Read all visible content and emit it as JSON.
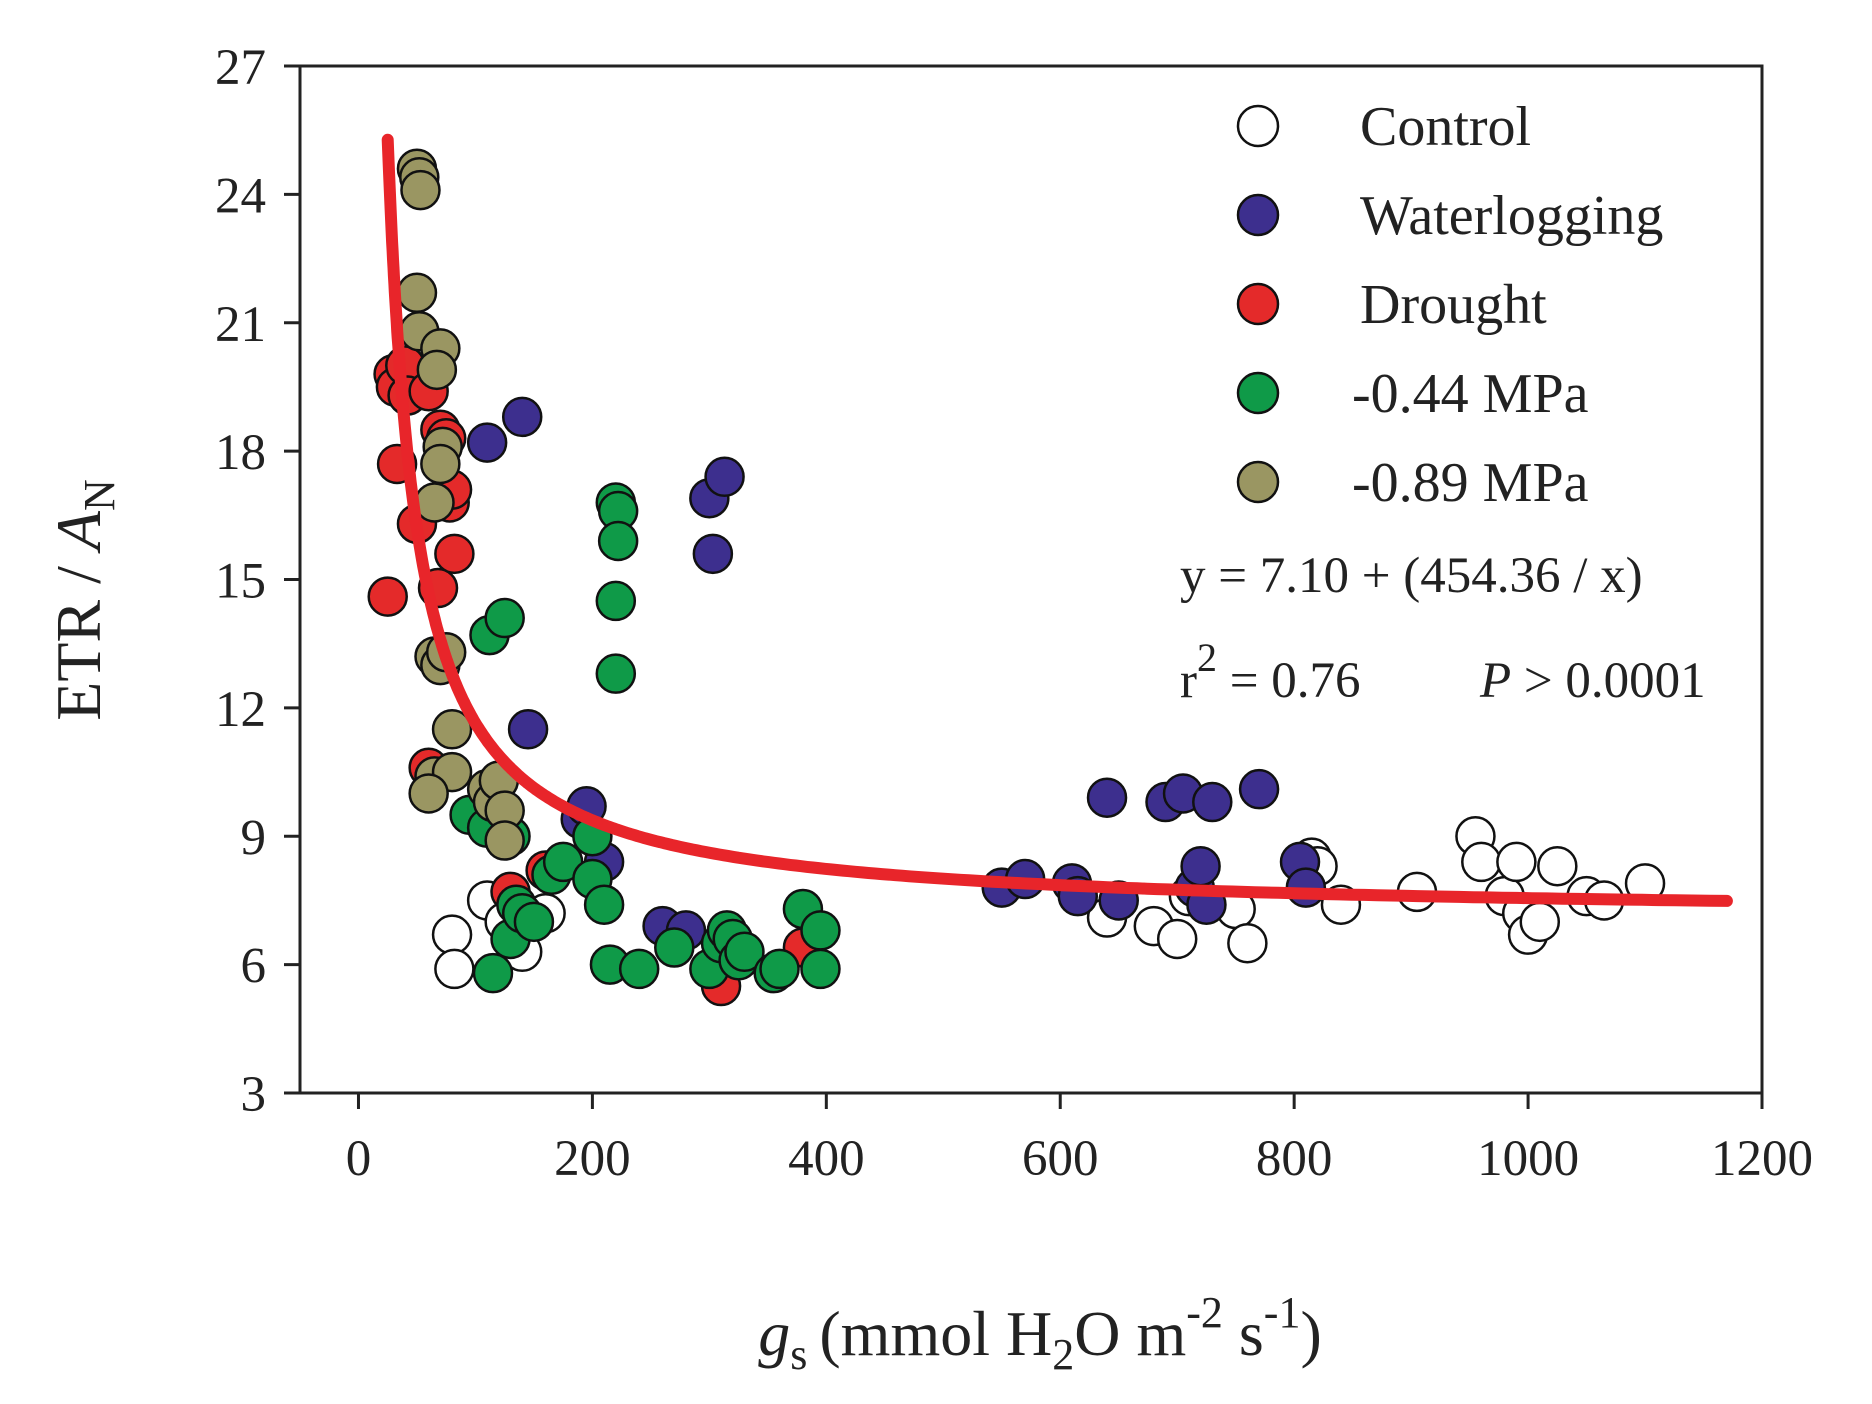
{
  "chart_data": {
    "type": "scatter",
    "title": "",
    "xlabel": {
      "symbol": "g",
      "subscript": "s",
      "unit": "(mmol H",
      "unit_sub": "2",
      "unit_mid": "O m",
      "sup1": "-2",
      "unit_end": " s",
      "sup2": "-1",
      "close": ")"
    },
    "ylabel": {
      "prefix": "ETR / ",
      "symbol": "A",
      "subscript": "N"
    },
    "xlim": [
      -50,
      1200
    ],
    "ylim": [
      3,
      27
    ],
    "xticks": [
      0,
      200,
      400,
      600,
      800,
      1000,
      1200
    ],
    "yticks": [
      3,
      6,
      9,
      12,
      15,
      18,
      21,
      24,
      27
    ],
    "xtick_labels": [
      "0",
      "200",
      "400",
      "600",
      "800",
      "1000",
      "1200"
    ],
    "ytick_labels": [
      "3",
      "6",
      "9",
      "12",
      "15",
      "18",
      "21",
      "24",
      "27"
    ],
    "legend_position": "top-right",
    "series": [
      {
        "name": "Control",
        "color": "#ffffff",
        "points": [
          [
            80,
            6.7
          ],
          [
            82,
            5.9
          ],
          [
            110,
            7.5
          ],
          [
            140,
            6.3
          ],
          [
            125,
            7.0
          ],
          [
            160,
            7.2
          ],
          [
            640,
            7.1
          ],
          [
            680,
            6.9
          ],
          [
            700,
            6.6
          ],
          [
            710,
            7.6
          ],
          [
            750,
            7.3
          ],
          [
            760,
            6.5
          ],
          [
            815,
            8.5
          ],
          [
            820,
            8.3
          ],
          [
            840,
            7.4
          ],
          [
            905,
            7.7
          ],
          [
            955,
            9.0
          ],
          [
            960,
            8.4
          ],
          [
            980,
            7.6
          ],
          [
            990,
            8.4
          ],
          [
            995,
            7.2
          ],
          [
            1000,
            6.7
          ],
          [
            1010,
            7.0
          ],
          [
            1025,
            8.3
          ],
          [
            1050,
            7.6
          ],
          [
            1065,
            7.5
          ],
          [
            1100,
            7.9
          ]
        ]
      },
      {
        "name": "Waterlogging",
        "color": "#3d2f8e",
        "points": [
          [
            110,
            18.2
          ],
          [
            140,
            18.8
          ],
          [
            145,
            11.5
          ],
          [
            190,
            9.4
          ],
          [
            195,
            9.7
          ],
          [
            210,
            8.4
          ],
          [
            260,
            6.9
          ],
          [
            280,
            6.8
          ],
          [
            300,
            16.9
          ],
          [
            303,
            15.6
          ],
          [
            313,
            17.4
          ],
          [
            550,
            7.8
          ],
          [
            570,
            8.0
          ],
          [
            610,
            7.9
          ],
          [
            615,
            7.6
          ],
          [
            640,
            9.9
          ],
          [
            650,
            7.5
          ],
          [
            690,
            9.8
          ],
          [
            705,
            10.0
          ],
          [
            715,
            7.8
          ],
          [
            720,
            8.3
          ],
          [
            725,
            7.4
          ],
          [
            730,
            9.8
          ],
          [
            770,
            10.1
          ],
          [
            805,
            8.4
          ],
          [
            810,
            7.8
          ]
        ]
      },
      {
        "name": "Drought",
        "color": "#e42a2a",
        "points": [
          [
            25,
            14.6
          ],
          [
            30,
            19.8
          ],
          [
            32,
            19.5
          ],
          [
            33,
            17.7
          ],
          [
            40,
            20.0
          ],
          [
            42,
            19.3
          ],
          [
            50,
            16.3
          ],
          [
            60,
            19.4
          ],
          [
            68,
            14.8
          ],
          [
            70,
            18.5
          ],
          [
            75,
            18.3
          ],
          [
            78,
            16.8
          ],
          [
            80,
            17.1
          ],
          [
            82,
            15.6
          ],
          [
            60,
            10.6
          ],
          [
            130,
            7.7
          ],
          [
            160,
            8.2
          ],
          [
            310,
            5.5
          ],
          [
            380,
            6.4
          ]
        ]
      },
      {
        "name": "-0.44 MPa",
        "color": "#0f9a48",
        "points": [
          [
            95,
            9.5
          ],
          [
            110,
            9.2
          ],
          [
            112,
            13.7
          ],
          [
            125,
            14.1
          ],
          [
            130,
            9.0
          ],
          [
            115,
            5.8
          ],
          [
            130,
            6.6
          ],
          [
            135,
            7.4
          ],
          [
            140,
            7.2
          ],
          [
            150,
            7.0
          ],
          [
            165,
            8.1
          ],
          [
            175,
            8.4
          ],
          [
            200,
            9.0
          ],
          [
            200,
            8.0
          ],
          [
            210,
            7.4
          ],
          [
            215,
            6.0
          ],
          [
            220,
            16.8
          ],
          [
            222,
            16.6
          ],
          [
            222,
            15.9
          ],
          [
            220,
            14.5
          ],
          [
            220,
            12.8
          ],
          [
            240,
            5.9
          ],
          [
            270,
            6.4
          ],
          [
            300,
            5.9
          ],
          [
            310,
            6.5
          ],
          [
            315,
            6.8
          ],
          [
            320,
            6.6
          ],
          [
            325,
            6.1
          ],
          [
            330,
            6.3
          ],
          [
            355,
            5.8
          ],
          [
            360,
            5.9
          ],
          [
            380,
            7.3
          ],
          [
            395,
            6.8
          ],
          [
            395,
            5.9
          ]
        ]
      },
      {
        "name": "-0.89 MPa",
        "color": "#9a9662",
        "points": [
          [
            50,
            24.6
          ],
          [
            52,
            24.4
          ],
          [
            53,
            24.1
          ],
          [
            50,
            21.7
          ],
          [
            52,
            20.8
          ],
          [
            70,
            20.4
          ],
          [
            67,
            19.9
          ],
          [
            72,
            18.1
          ],
          [
            70,
            17.7
          ],
          [
            65,
            16.8
          ],
          [
            65,
            13.2
          ],
          [
            70,
            13.0
          ],
          [
            75,
            13.3
          ],
          [
            80,
            11.5
          ],
          [
            65,
            10.4
          ],
          [
            80,
            10.5
          ],
          [
            60,
            10.0
          ],
          [
            110,
            10.1
          ],
          [
            115,
            9.8
          ],
          [
            120,
            10.3
          ],
          [
            125,
            9.6
          ],
          [
            125,
            8.9
          ]
        ]
      }
    ],
    "fit": {
      "label": "fit curve",
      "color": "#e8252a",
      "a": 7.1,
      "b": 454.36,
      "x_start": 25,
      "x_end": 1170
    },
    "annotations": {
      "equation": "y = 7.10 + (454.36 / x)",
      "r2_prefix": "r",
      "r2_sup": "2",
      "r2_value": " = 0.76",
      "p_symbol": "P",
      "p_rest": " > 0.0001"
    }
  }
}
